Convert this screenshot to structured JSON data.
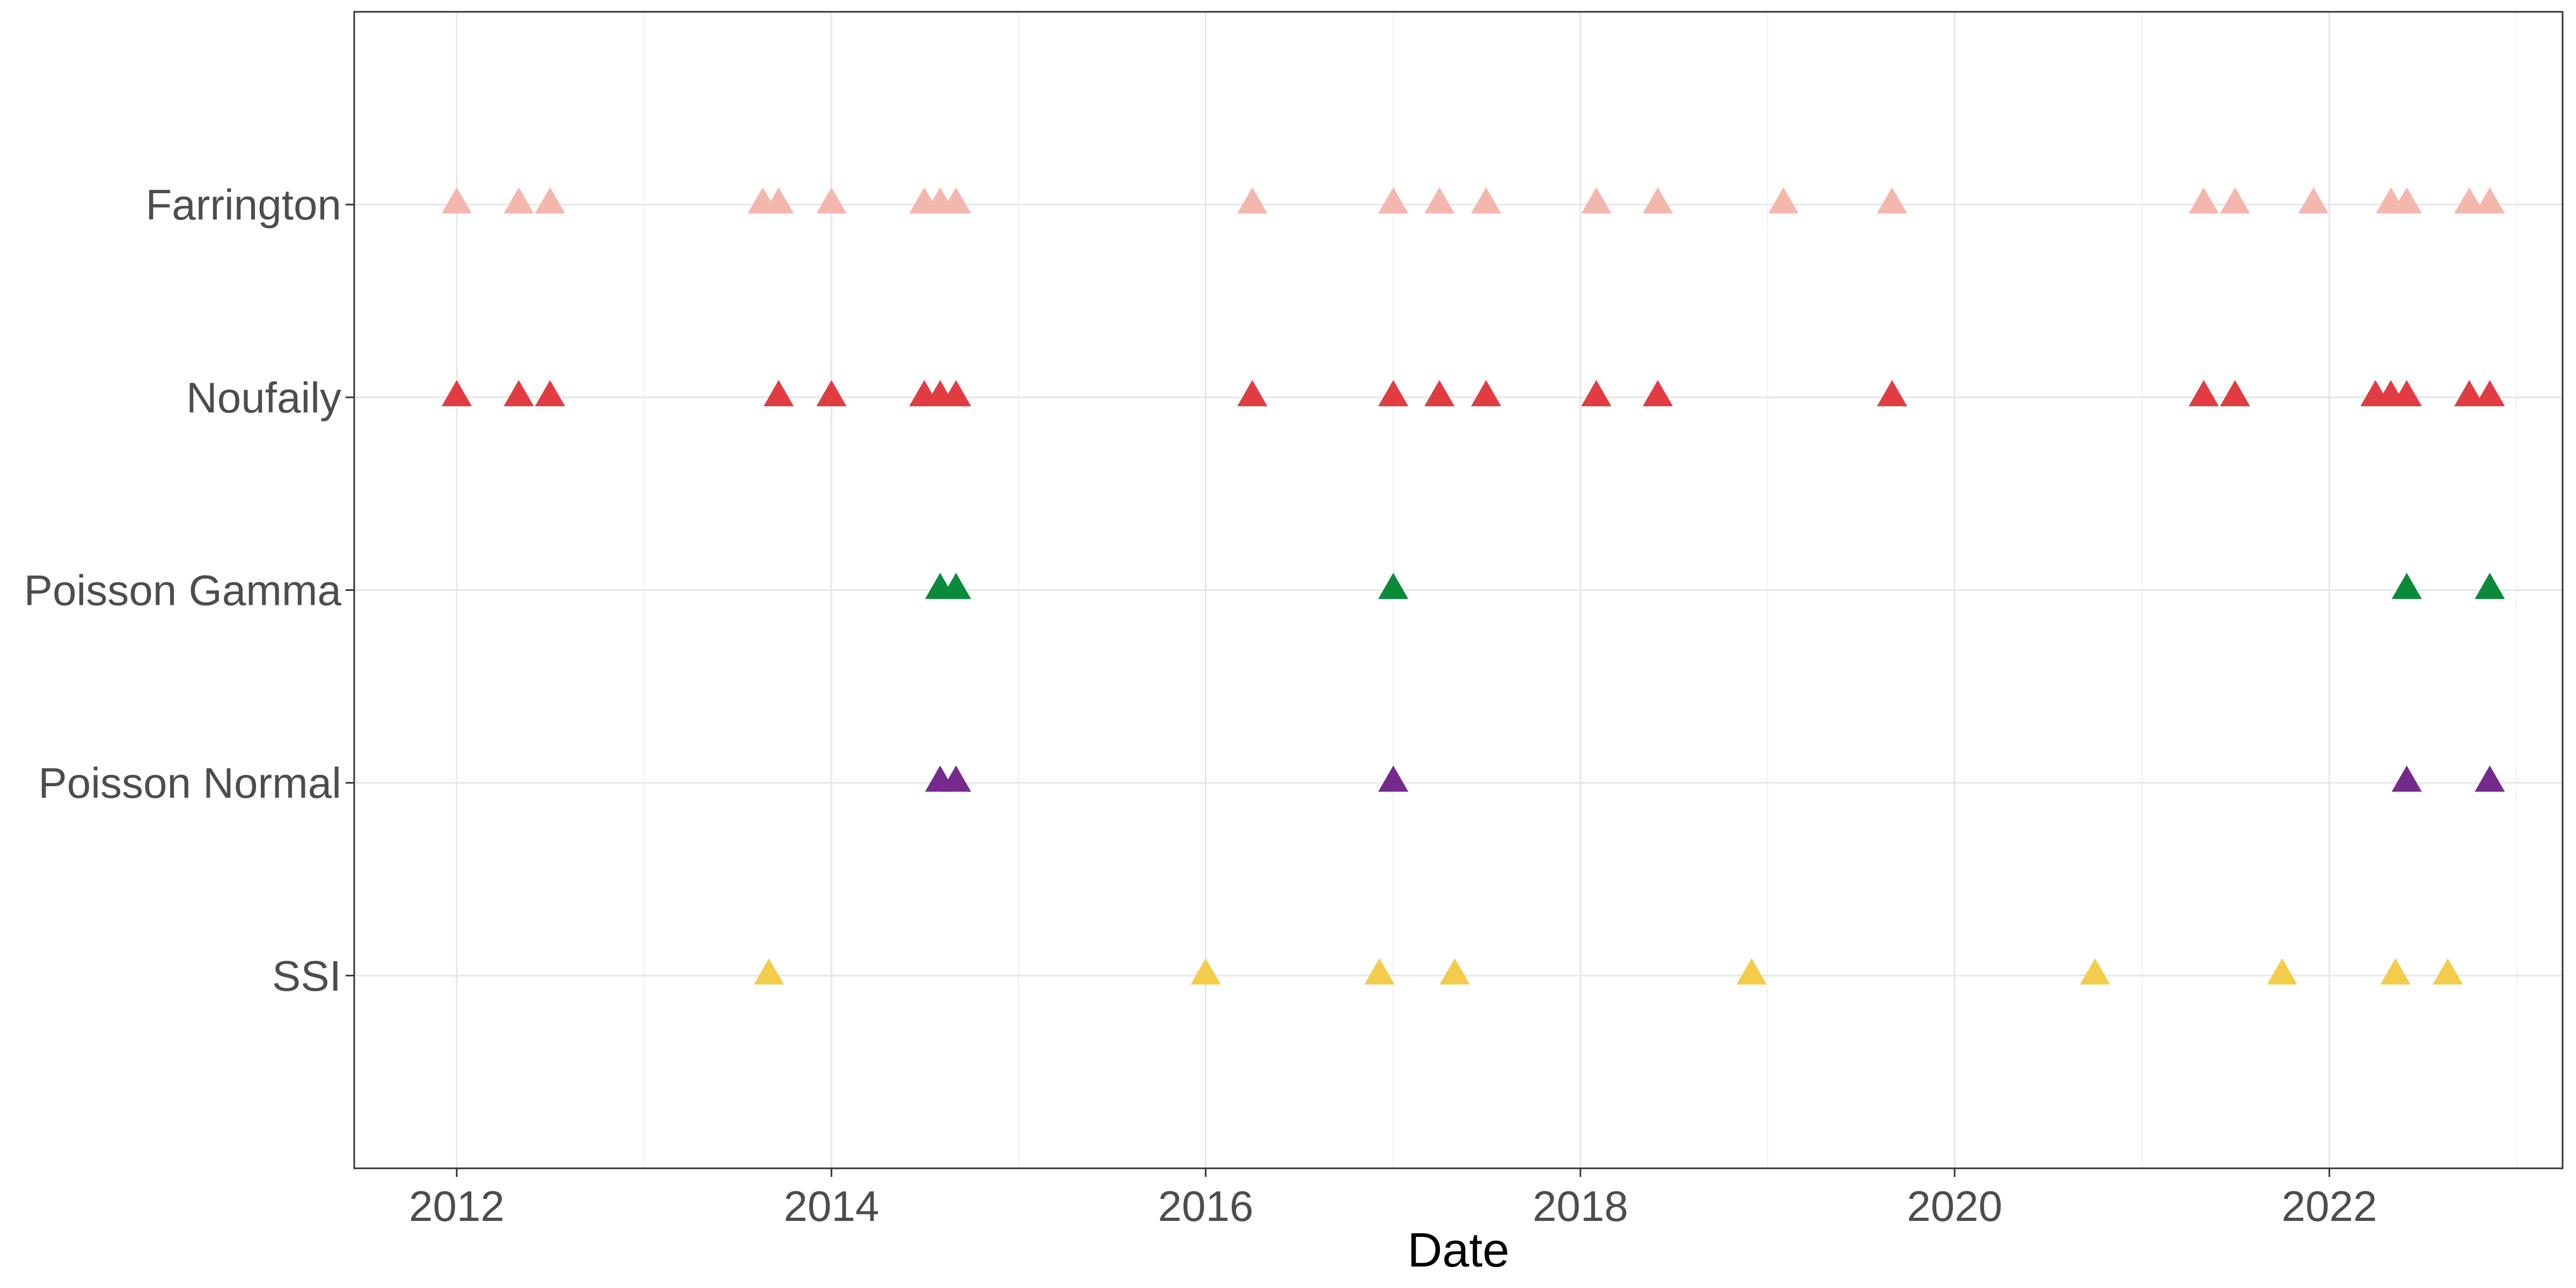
{
  "chart_data": {
    "type": "scatter",
    "title": "",
    "xlabel": "Date",
    "ylabel": "",
    "xlim": [
      "2011-06-15",
      "2023-04-01"
    ],
    "x_ticks": [
      "2012",
      "2014",
      "2016",
      "2018",
      "2020",
      "2022"
    ],
    "categories": [
      "SSI",
      "Poisson Normal",
      "Poisson Gamma",
      "Noufaily",
      "Farrington"
    ],
    "grid": true,
    "legend": "none",
    "marker": "triangle",
    "series": [
      {
        "category": "Farrington",
        "color": "#F4B7AE",
        "dates": [
          "2012-01-01",
          "2012-05-01",
          "2012-07-01",
          "2013-08-20",
          "2013-09-20",
          "2014-01-01",
          "2014-07-01",
          "2014-08-01",
          "2014-09-01",
          "2016-04-01",
          "2017-01-01",
          "2017-04-01",
          "2017-07-01",
          "2018-02-01",
          "2018-06-01",
          "2019-02-01",
          "2019-09-01",
          "2021-05-01",
          "2021-07-01",
          "2021-12-01",
          "2022-05-01",
          "2022-06-01",
          "2022-10-01",
          "2022-11-10"
        ]
      },
      {
        "category": "Noufaily",
        "color": "#E03C42",
        "dates": [
          "2012-01-01",
          "2012-05-01",
          "2012-07-01",
          "2013-09-20",
          "2014-01-01",
          "2014-07-01",
          "2014-08-01",
          "2014-09-01",
          "2016-04-01",
          "2017-01-01",
          "2017-04-01",
          "2017-07-01",
          "2018-02-01",
          "2018-06-01",
          "2019-09-01",
          "2021-05-01",
          "2021-07-01",
          "2022-04-01",
          "2022-05-01",
          "2022-06-01",
          "2022-10-01",
          "2022-11-10"
        ]
      },
      {
        "category": "Poisson Gamma",
        "color": "#0B8A3A",
        "dates": [
          "2014-08-01",
          "2014-09-01",
          "2017-01-01",
          "2022-06-01",
          "2022-11-10"
        ]
      },
      {
        "category": "Poisson Normal",
        "color": "#762A8C",
        "dates": [
          "2014-08-01",
          "2014-09-01",
          "2017-01-01",
          "2022-06-01",
          "2022-11-10"
        ]
      },
      {
        "category": "SSI",
        "color": "#F2CC4A",
        "dates": [
          "2013-09-01",
          "2016-01-01",
          "2016-12-05",
          "2017-05-01",
          "2018-12-01",
          "2020-10-01",
          "2021-10-01",
          "2022-05-10",
          "2022-08-20"
        ]
      }
    ]
  }
}
